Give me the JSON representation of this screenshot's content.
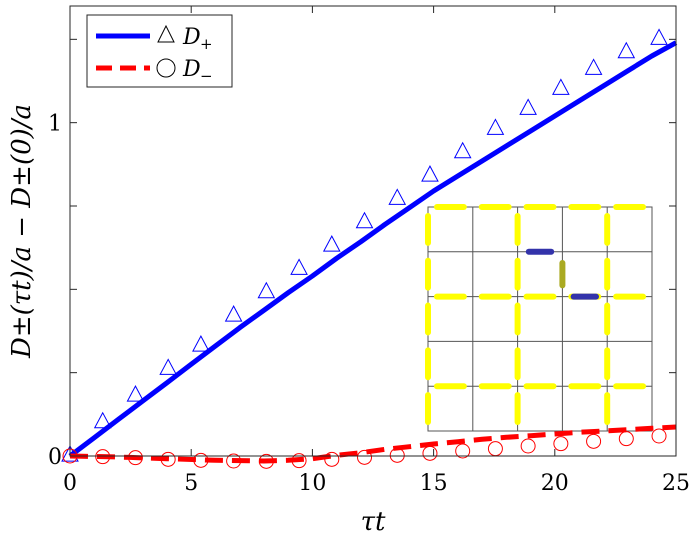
{
  "chart_data": {
    "type": "line",
    "xlabel": "τt",
    "ylabel": "D±(τt)/a − D±(0)/a",
    "xlim": [
      0,
      25
    ],
    "ylim": [
      0,
      1.35
    ],
    "xticks": [
      0,
      5,
      10,
      15,
      20,
      25
    ],
    "xtick_labels": [
      "0",
      "5",
      "10",
      "15",
      "20",
      "25"
    ],
    "yticks": [
      0,
      1
    ],
    "ytick_labels": [
      "0",
      "1"
    ],
    "legend_position": "top-left",
    "legend": [
      {
        "series": "D+",
        "label": "D",
        "sub": "+",
        "line_style": "solid",
        "marker": "triangle",
        "color": "#0000ff"
      },
      {
        "series": "D-",
        "label": "D",
        "sub": "−",
        "line_style": "dashed",
        "marker": "circle",
        "color": "#ff0000"
      }
    ],
    "series": [
      {
        "name": "D+",
        "style": "solid",
        "color": "#0000ff",
        "x": [
          0,
          1,
          2,
          3,
          4,
          5,
          6,
          7,
          8,
          9,
          10,
          11,
          12,
          13,
          14,
          15,
          16,
          17,
          18,
          19,
          20,
          21,
          22,
          23,
          24,
          25
        ],
        "y": [
          0,
          0.055,
          0.11,
          0.165,
          0.22,
          0.275,
          0.33,
          0.385,
          0.437,
          0.49,
          0.54,
          0.593,
          0.643,
          0.695,
          0.745,
          0.795,
          0.84,
          0.885,
          0.93,
          0.975,
          1.02,
          1.065,
          1.11,
          1.155,
          1.2,
          1.24
        ]
      },
      {
        "name": "D+ markers",
        "style": "markers",
        "marker": "triangle",
        "color": "#0000ff",
        "x": [
          0,
          1.35,
          2.7,
          4.05,
          5.4,
          6.75,
          8.1,
          9.45,
          10.8,
          12.15,
          13.5,
          14.85,
          16.2,
          17.55,
          18.9,
          20.25,
          21.6,
          22.95,
          24.3
        ],
        "y": [
          0,
          0.1,
          0.18,
          0.26,
          0.33,
          0.42,
          0.49,
          0.56,
          0.63,
          0.7,
          0.77,
          0.84,
          0.91,
          0.98,
          1.04,
          1.1,
          1.16,
          1.21,
          1.25
        ]
      },
      {
        "name": "D-",
        "style": "dashed",
        "color": "#ff0000",
        "x": [
          0,
          2,
          4,
          6,
          8,
          9,
          10,
          11,
          12,
          13,
          14,
          15,
          16,
          17,
          18,
          19,
          20,
          21,
          22,
          23,
          24,
          25
        ],
        "y": [
          0,
          -0.003,
          -0.008,
          -0.013,
          -0.015,
          -0.013,
          -0.008,
          0.002,
          0.01,
          0.02,
          0.028,
          0.036,
          0.043,
          0.05,
          0.056,
          0.061,
          0.066,
          0.071,
          0.075,
          0.079,
          0.083,
          0.087
        ]
      },
      {
        "name": "D- markers",
        "style": "markers",
        "marker": "circle",
        "color": "#ff0000",
        "x": [
          0,
          1.35,
          2.7,
          4.05,
          5.4,
          6.75,
          8.1,
          9.45,
          10.8,
          12.15,
          13.5,
          14.85,
          16.2,
          17.55,
          18.9,
          20.25,
          21.6,
          22.95,
          24.3
        ],
        "y": [
          0,
          -0.002,
          -0.005,
          -0.01,
          -0.013,
          -0.015,
          -0.016,
          -0.014,
          -0.01,
          -0.004,
          0.002,
          0.008,
          0.015,
          0.022,
          0.03,
          0.037,
          0.044,
          0.052,
          0.06
        ]
      }
    ],
    "inset": {
      "description_only": false,
      "grid_cells": 5,
      "line_color": "#555555",
      "bond_color": "#ffff00",
      "highlight_bonds": [
        {
          "orient": "h",
          "row": 1,
          "col": 2,
          "color": "#3333aa"
        },
        {
          "orient": "v",
          "row": 1,
          "col": 3,
          "color": "#aaaa22"
        },
        {
          "orient": "h",
          "row": 2,
          "col": 3,
          "color": "#3333aa"
        }
      ]
    }
  }
}
